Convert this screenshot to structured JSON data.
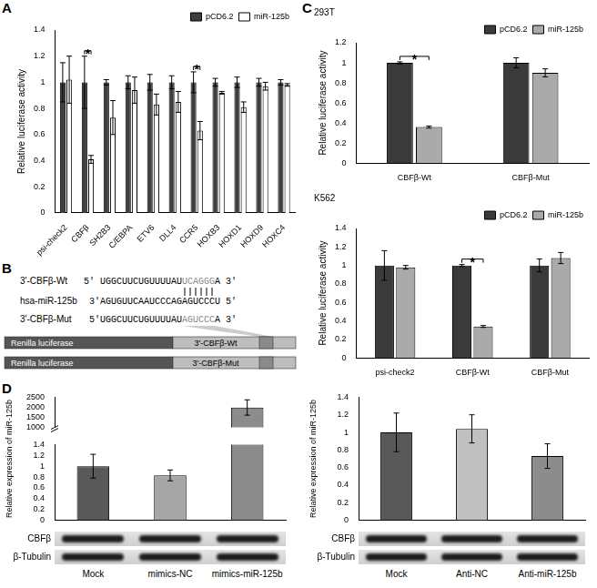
{
  "chart_data": [
    {
      "panel": "A",
      "type": "bar",
      "categories": [
        "psi-check2",
        "CBFβ",
        "SH2B3",
        "C/EBPA",
        "ETV6",
        "DLL4",
        "CCR5",
        "HOXB3",
        "HOXD1",
        "HOXD9",
        "HOXC4"
      ],
      "series": [
        {
          "name": "pCD6.2",
          "color": "#3f3f3f",
          "values": [
            1,
            1,
            1,
            1,
            1,
            1,
            1,
            1,
            1,
            1,
            1
          ],
          "errors": [
            0.15,
            0.2,
            0.02,
            0.05,
            0.06,
            0.05,
            0.08,
            0.03,
            0.04,
            0.03,
            0.02
          ]
        },
        {
          "name": "miR-125b",
          "color": "#ffffff",
          "values": [
            1.02,
            0.41,
            0.73,
            0.94,
            0.83,
            0.85,
            0.63,
            0.92,
            0.81,
            0.97,
            0.98
          ],
          "errors": [
            0.18,
            0.03,
            0.13,
            0.1,
            0.08,
            0.08,
            0.07,
            0.01,
            0.04,
            0.03,
            0.01
          ]
        }
      ],
      "ylim": [
        0,
        1.4
      ],
      "yticks": [
        0,
        0.2,
        0.4,
        0.6,
        0.8,
        1,
        1.2,
        1.4
      ],
      "y_label": "Relative luciferase activity",
      "legend": "upper right",
      "annotations": [
        {
          "text": "*",
          "category": "CBFβ"
        },
        {
          "text": "*",
          "category": "CCR5"
        }
      ]
    },
    {
      "panel": "C",
      "type": "bar",
      "title": "293T",
      "categories": [
        "CBFβ-Wt",
        "CBFβ-Mut"
      ],
      "series": [
        {
          "name": "pCD6.2",
          "color": "#3a3a3a",
          "values": [
            1,
            1
          ],
          "errors": [
            0.01,
            0.05
          ]
        },
        {
          "name": "miR-125b",
          "color": "#aaaaaa",
          "values": [
            0.36,
            0.9
          ],
          "errors": [
            0.01,
            0.04
          ]
        }
      ],
      "ylim": [
        0,
        1.2
      ],
      "yticks": [
        0,
        0.2,
        0.4,
        0.6,
        0.8,
        1,
        1.2
      ],
      "y_label": "Relative luciferase activity",
      "legend": "upper right",
      "annotations": [
        {
          "text": "*",
          "category": "CBFβ-Wt"
        }
      ]
    },
    {
      "type": "bar",
      "title": "K562",
      "categories": [
        "psi-check2",
        "CBFβ-Wt",
        "CBFβ-Mut"
      ],
      "series": [
        {
          "name": "pCD6.2",
          "color": "#3a3a3a",
          "values": [
            1,
            1,
            1
          ],
          "errors": [
            0.16,
            0.01,
            0.07
          ]
        },
        {
          "name": "miR-125b",
          "color": "#aaaaaa",
          "values": [
            0.98,
            0.34,
            1.08
          ],
          "errors": [
            0.02,
            0.01,
            0.06
          ]
        }
      ],
      "ylim": [
        0,
        1.4
      ],
      "yticks": [
        0,
        0.2,
        0.4,
        0.6,
        0.8,
        1,
        1.2,
        1.4
      ],
      "y_label": "Relative luciferase activity",
      "legend": "upper right",
      "annotations": [
        {
          "text": "*",
          "category": "CBFβ-Wt"
        }
      ]
    },
    {
      "panel": "D",
      "type": "bar",
      "categories": [
        "Mock",
        "mimics-NC",
        "mimics-miR-125b"
      ],
      "values": [
        1,
        0.83,
        1990
      ],
      "errors": [
        0.22,
        0.1,
        380
      ],
      "colors": [
        "#595959",
        "#a6a6a6",
        "#8c8c8c"
      ],
      "ylim": [
        [
          0,
          1.4
        ],
        [
          1000,
          2500
        ]
      ],
      "yticks": [
        [
          0,
          0.2,
          0.4,
          0.6,
          0.8,
          1,
          1.2,
          1.4
        ],
        [
          1000,
          1500,
          2000,
          2500
        ]
      ],
      "y_label": "Relative expression of miR-125b",
      "tick_labels": "y",
      "blot": {
        "rows": [
          "CBFβ",
          "β-Tubulin"
        ]
      }
    },
    {
      "type": "bar",
      "categories": [
        "Mock",
        "Anti-NC",
        "Anti-miR-125b"
      ],
      "values": [
        1,
        1.04,
        0.73
      ],
      "errors": [
        0.22,
        0.16,
        0.14
      ],
      "colors": [
        "#595959",
        "#c0c0c0",
        "#8c8c8c"
      ],
      "ylim": [
        0,
        1.4
      ],
      "yticks": [
        0,
        0.2,
        0.4,
        0.6,
        0.8,
        1,
        1.2,
        1.4
      ],
      "y_label": "Relative expression of miR-125b",
      "tick_labels": "y",
      "blot": {
        "rows": [
          "CBFβ",
          "β-Tubulin"
        ]
      }
    }
  ],
  "diagram": {
    "panel": "B",
    "sequences": [
      {
        "label": "3'-CBFβ-Wt",
        "parts": [
          "5' UGGCUUCUGUUUUAU",
          "UCAGGG",
          "A 3'"
        ]
      },
      {
        "label": "hsa-miR-125b",
        "parts": [
          "3'AGUGUUCAAUCCCAG",
          "AGUCCC",
          "U 5'"
        ]
      },
      {
        "label": "3'-CBFβ-Mut",
        "parts": [
          "5'UGGCUUCUGUUUUAU",
          "AGUCCC",
          "A 3'"
        ]
      }
    ],
    "constructs": [
      {
        "reporter": "Renilla luciferase",
        "insert": "3'-CBFβ-Wt"
      },
      {
        "reporter": "Renilla luciferase",
        "insert": "3'-CBFβ-Mut"
      }
    ]
  }
}
